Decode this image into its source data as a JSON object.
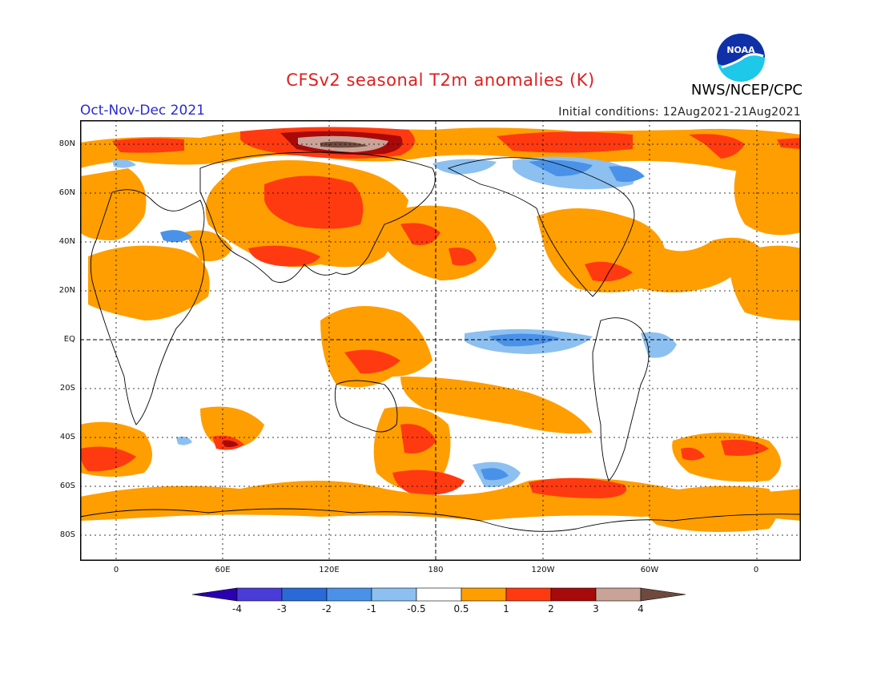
{
  "header": {
    "title": "CFSv2 seasonal T2m anomalies (K)",
    "period": "Oct-Nov-Dec 2021",
    "initial_conditions": "Initial conditions: 12Aug2021-21Aug2021",
    "agency": "NWS/NCEP/CPC",
    "logo_text": "NOAA"
  },
  "axes": {
    "lat_labels": [
      "80N",
      "60N",
      "40N",
      "20N",
      "EQ",
      "20S",
      "40S",
      "60S",
      "80S"
    ],
    "lon_labels": [
      "0",
      "60E",
      "120E",
      "180",
      "120W",
      "60W",
      "0"
    ]
  },
  "legend": {
    "labels": [
      "-4",
      "-3",
      "-2",
      "-1",
      "-0.5",
      "0.5",
      "1",
      "2",
      "3",
      "4"
    ],
    "colors": [
      "#2a00b0",
      "#4a3cd8",
      "#2a6ad6",
      "#4a92e8",
      "#8cc0f0",
      "#ffffff",
      "#ff9e00",
      "#ff3a10",
      "#a80a0a",
      "#c9a298",
      "#6e4a3e"
    ]
  },
  "colors": {
    "title": "#e01e1e",
    "period": "#2a2ad8",
    "anomaly_0_5_to_1": "#ff9e00",
    "anomaly_1_to_2": "#ff3a10",
    "anomaly_2_to_3": "#a80a0a",
    "anomaly_3_to_4": "#c9a298",
    "anomaly_gt_4": "#6e4a3e",
    "anomaly_m0_5_to_m1": "#8cc0f0",
    "anomaly_m1_to_m2": "#4a92e8"
  }
}
